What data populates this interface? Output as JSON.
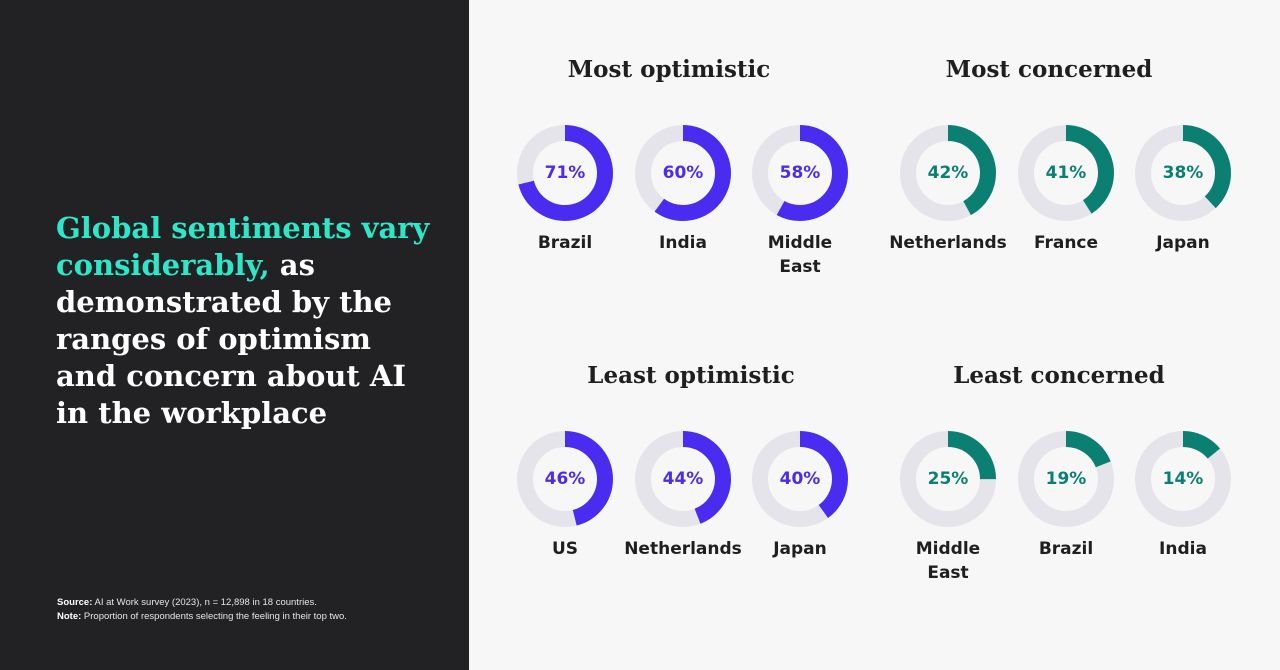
{
  "headline": {
    "highlight": "Global sentiments vary considerably,",
    "rest": " as demonstrated by the ranges of optimism and concern about AI in the workplace"
  },
  "notes": {
    "source_label": "Source:",
    "source_text": " AI at Work survey (2023), n = 12,898 in 18 countries.",
    "note_label": "Note:",
    "note_text": " Proportion of respondents selecting the feeling in their top two."
  },
  "colors": {
    "optimism": "#4a2cf0",
    "concern": "#0b7f72",
    "track": "#e4e4ea"
  },
  "chart_data": [
    {
      "type": "pie",
      "title": "Most optimistic",
      "color": "#4a2cf0",
      "items": [
        {
          "label": "Brazil",
          "value": 71,
          "display": "71%"
        },
        {
          "label": "India",
          "value": 60,
          "display": "60%"
        },
        {
          "label": "Middle East",
          "value": 58,
          "display": "58%"
        }
      ]
    },
    {
      "type": "pie",
      "title": "Most concerned",
      "color": "#0b7f72",
      "items": [
        {
          "label": "Netherlands",
          "value": 42,
          "display": "42%"
        },
        {
          "label": "France",
          "value": 41,
          "display": "41%"
        },
        {
          "label": "Japan",
          "value": 38,
          "display": "38%"
        }
      ]
    },
    {
      "type": "pie",
      "title": "Least optimistic",
      "color": "#4a2cf0",
      "items": [
        {
          "label": "US",
          "value": 46,
          "display": "46%"
        },
        {
          "label": "Netherlands",
          "value": 44,
          "display": "44%"
        },
        {
          "label": "Japan",
          "value": 40,
          "display": "40%"
        }
      ]
    },
    {
      "type": "pie",
      "title": "Least concerned",
      "color": "#0b7f72",
      "items": [
        {
          "label": "Middle East",
          "value": 25,
          "display": "25%"
        },
        {
          "label": "Brazil",
          "value": 19,
          "display": "19%"
        },
        {
          "label": "India",
          "value": 14,
          "display": "14%"
        }
      ]
    }
  ]
}
